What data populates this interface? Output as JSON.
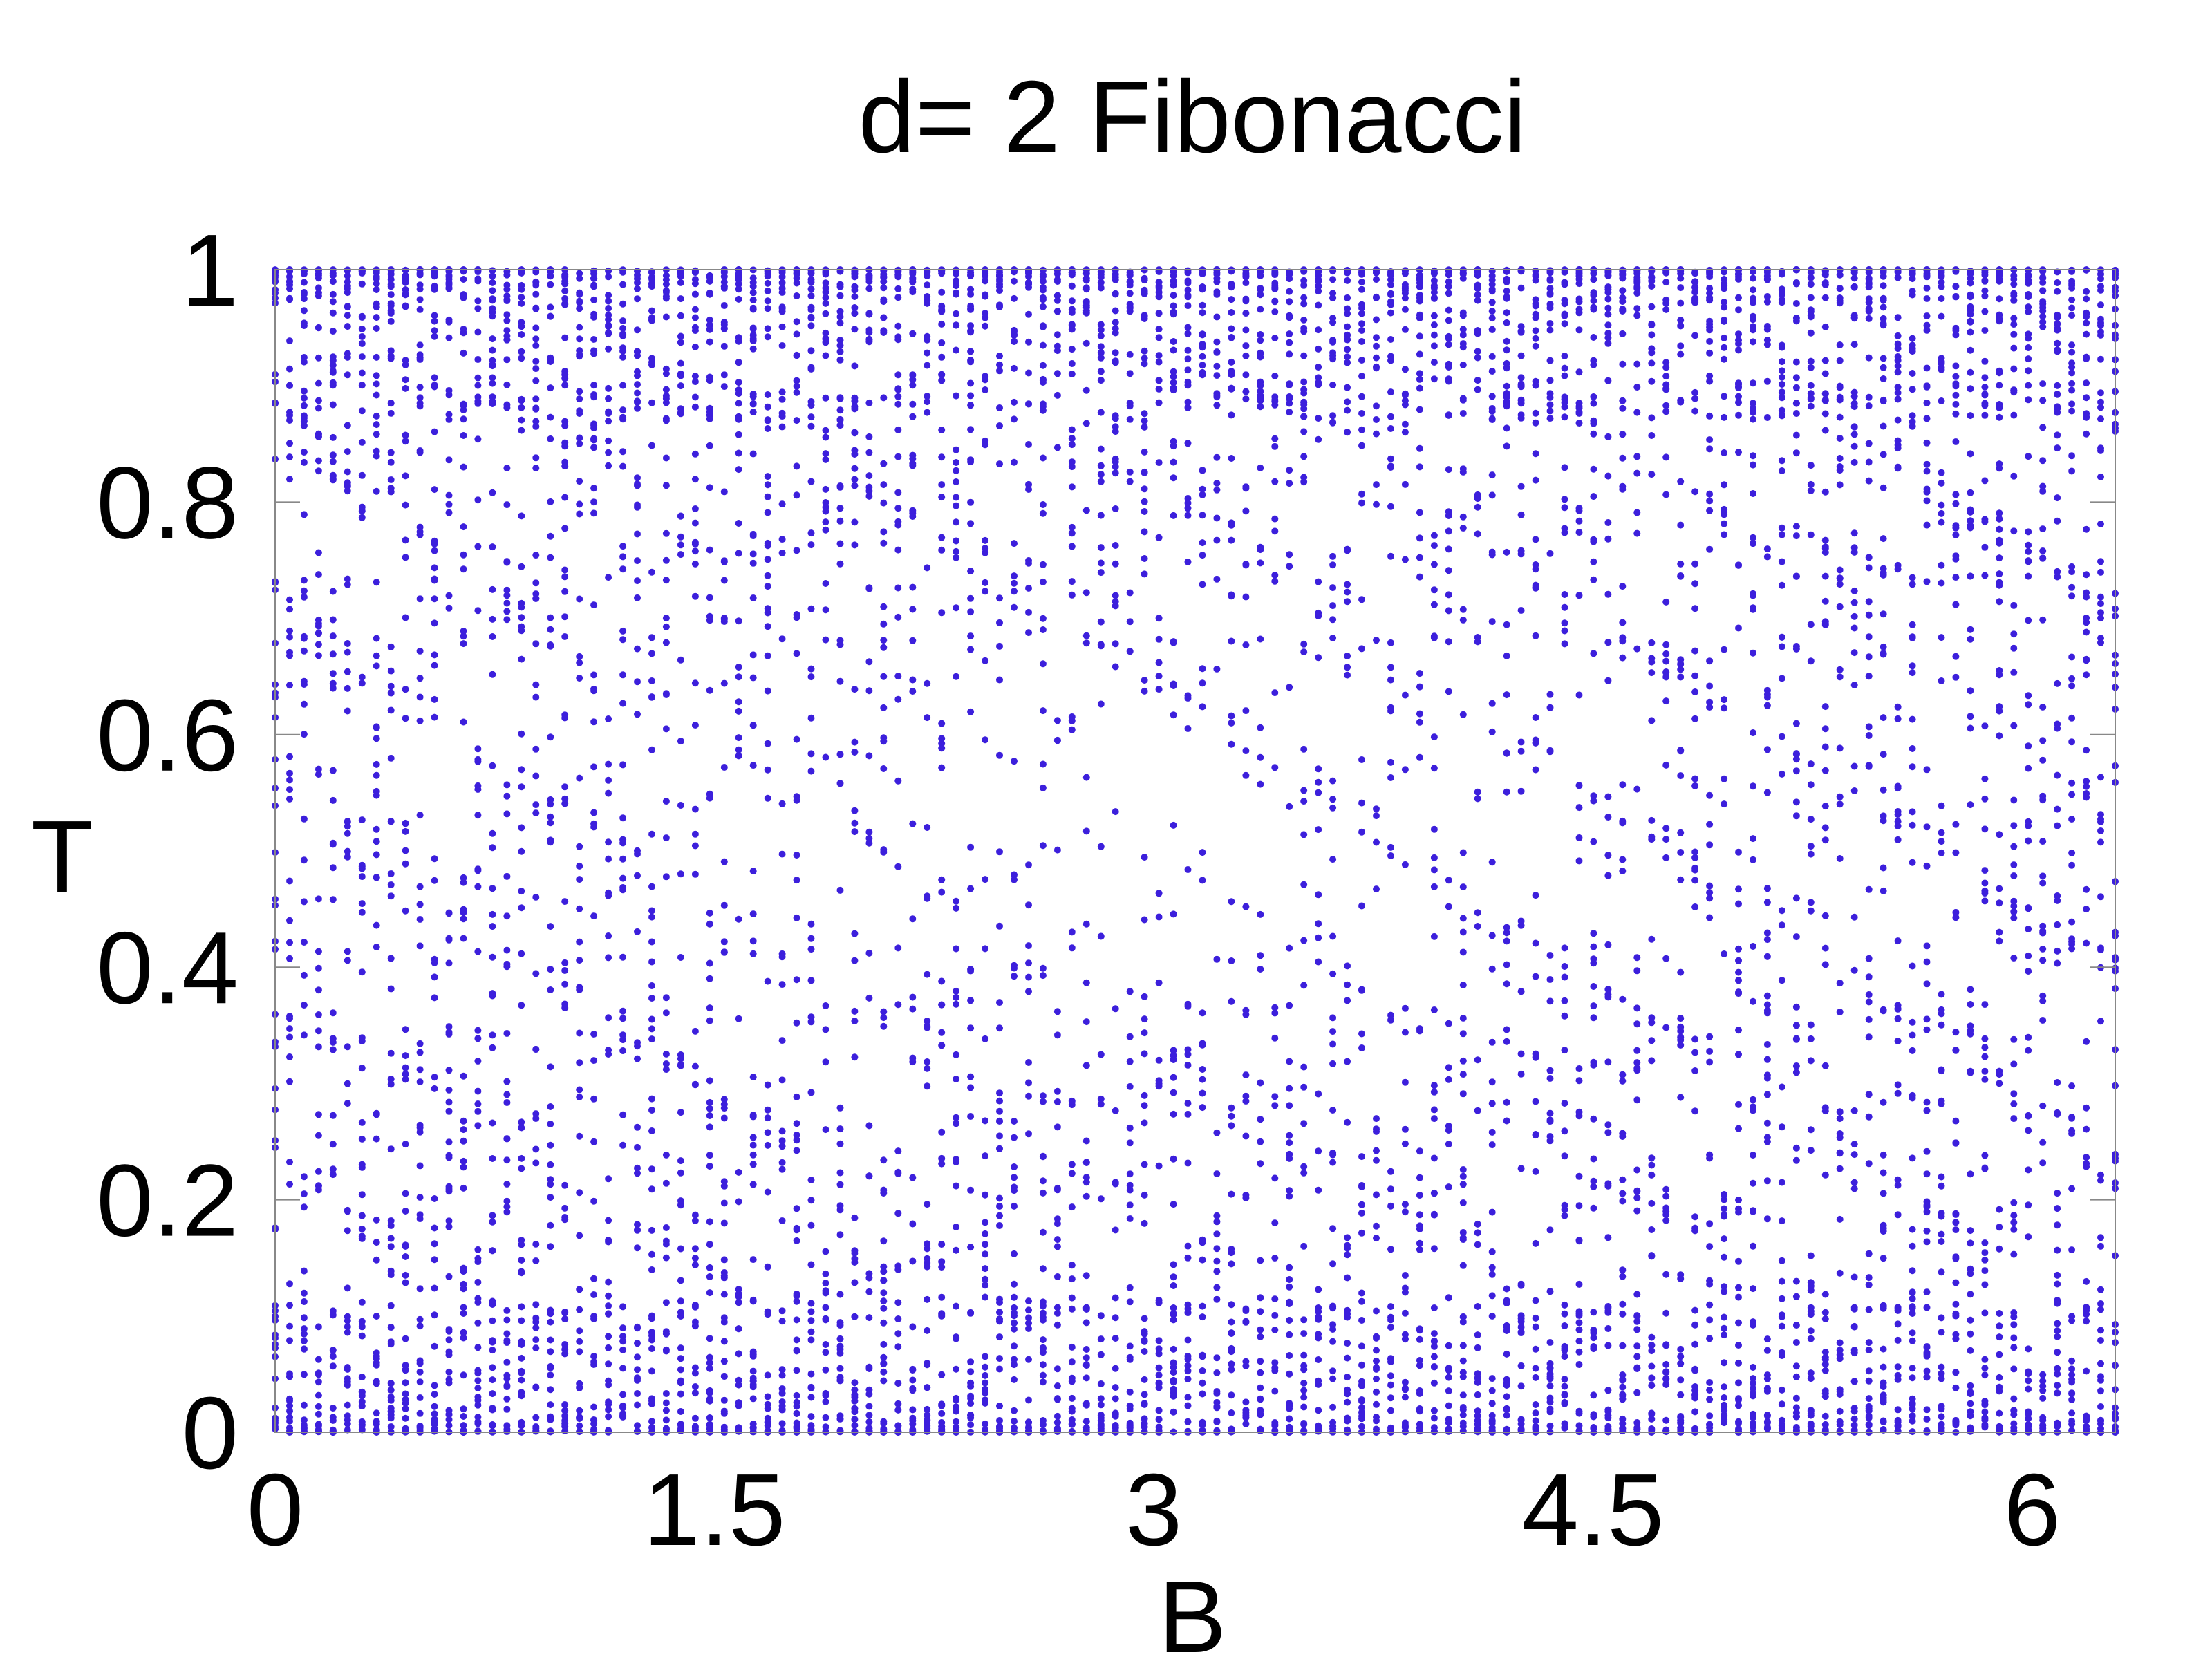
{
  "chart_data": {
    "type": "scatter",
    "title": "d= 2 Fibonacci",
    "xlabel": "B",
    "ylabel": "T",
    "xlim": [
      0,
      6.2832
    ],
    "ylim": [
      0,
      1
    ],
    "x_ticks": [
      "0",
      "1.5",
      "3",
      "4.5",
      "6"
    ],
    "x_tick_values": [
      0,
      1.5,
      3,
      4.5,
      6
    ],
    "y_ticks": [
      "0",
      "0.2",
      "0.4",
      "0.6",
      "0.8",
      "1"
    ],
    "y_tick_values": [
      0,
      0.2,
      0.4,
      0.6,
      0.8,
      1
    ],
    "grid": false,
    "legend": "none",
    "marker_color": "#3c1fdc",
    "series": [
      {
        "x_sampling": {
          "from": 0,
          "to": 6.2832,
          "count": 128
        },
        "points_per_x": 60,
        "y_range": [
          0,
          1
        ],
        "density_profile": "points concentrated near T=0 and T=1; sparse fractal bands in the middle, with a sparse lobe centered near B=3.14, T=0.5"
      }
    ]
  }
}
